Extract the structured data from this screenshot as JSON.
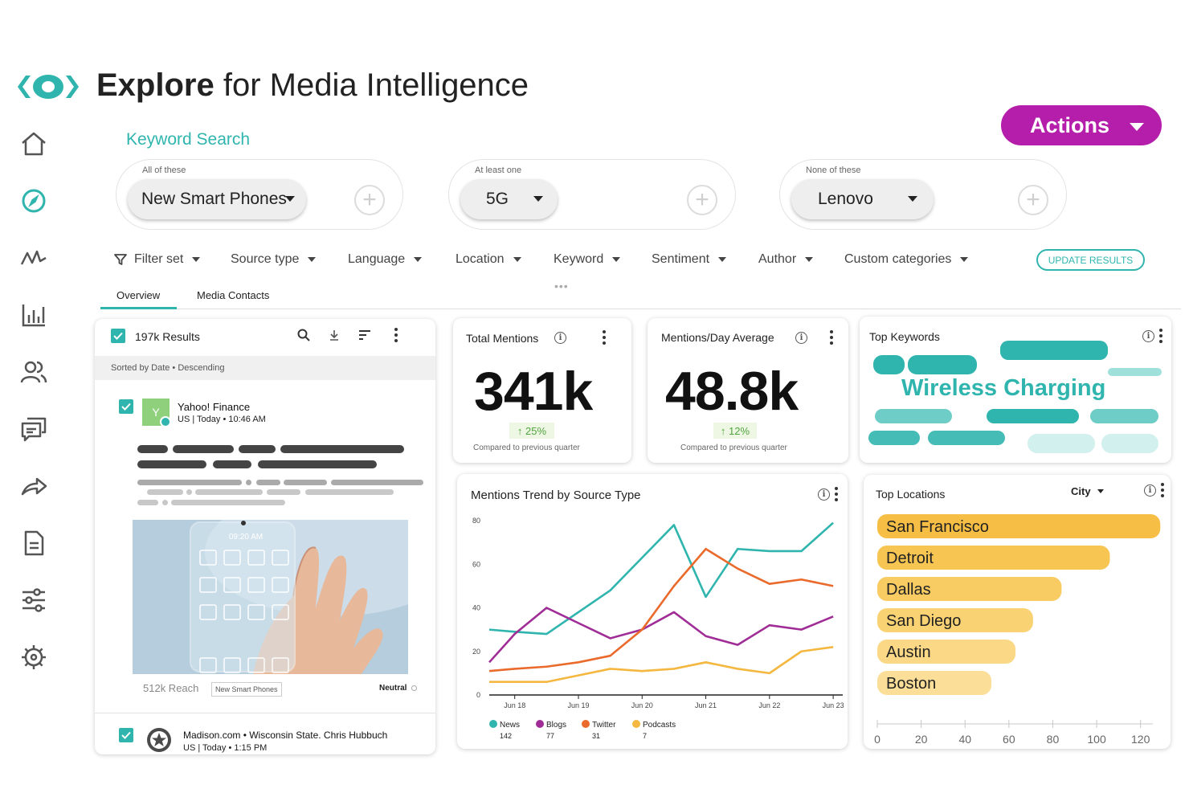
{
  "header": {
    "title_bold": "Explore",
    "title_rest": " for Media Intelligence",
    "actions_label": "Actions"
  },
  "sidebar": {
    "items": [
      {
        "icon": "home-icon"
      },
      {
        "icon": "compass-icon",
        "active": true
      },
      {
        "icon": "trend-icon"
      },
      {
        "icon": "bar-chart-icon"
      },
      {
        "icon": "people-icon"
      },
      {
        "icon": "chat-icon"
      },
      {
        "icon": "share-icon"
      },
      {
        "icon": "document-icon"
      },
      {
        "icon": "sliders-icon"
      },
      {
        "icon": "settings-icon"
      }
    ]
  },
  "keyword_search": {
    "title": "Keyword Search",
    "groups": [
      {
        "label": "All of these",
        "value": "New Smart Phones"
      },
      {
        "label": "At least one",
        "value": "5G"
      },
      {
        "label": "None of these",
        "value": "Lenovo"
      }
    ]
  },
  "filters": {
    "items": [
      "Filter set",
      "Source type",
      "Language",
      "Location",
      "Keyword",
      "Sentiment",
      "Author",
      "Custom categories"
    ],
    "update_label": "UPDATE RESULTS"
  },
  "tabs": [
    "Overview",
    "Media Contacts"
  ],
  "results": {
    "count": "197k Results",
    "sorted": "Sorted by Date • Descending",
    "item1": {
      "avatar": "Y",
      "source": "Yahoo! Finance",
      "meta": "US  |  Today • 10:46 AM",
      "reach": "512k Reach",
      "tag": "New Smart Phones",
      "sentiment": "Neutral",
      "phone_time": "09:20 AM"
    },
    "item2": {
      "source": "Madison.com • Wisconsin State. Chris Hubbuch",
      "meta": "US | Today • 1:15 PM"
    }
  },
  "kpis": [
    {
      "title": "Total Mentions",
      "value": "341k",
      "delta": "↑ 25%",
      "note": "Compared to previous quarter"
    },
    {
      "title": "Mentions/Day Average",
      "value": "48.8k",
      "delta": "↑ 12%",
      "note": "Compared to previous quarter"
    }
  ],
  "top_keywords": {
    "title": "Top Keywords",
    "highlight": "Wireless Charging",
    "accent": "#2fb5ae"
  },
  "trend": {
    "title": "Mentions Trend by Source Type",
    "legend_counts": {
      "News": "142",
      "Blogs": "77",
      "Twitter": "31",
      "Podcasts": "7"
    }
  },
  "locations": {
    "title": "Top Locations",
    "selector": "City"
  },
  "chart_data": [
    {
      "type": "line",
      "title": "Mentions Trend by Source Type",
      "x_ticks": [
        "Jun 18",
        "Jun 19",
        "Jun 20",
        "Jun 21",
        "Jun 22",
        "Jun 23"
      ],
      "x": [
        17.6,
        18.0,
        18.5,
        19.0,
        19.5,
        20.0,
        20.5,
        21.0,
        21.5,
        22.0,
        22.5,
        23.0
      ],
      "ylim": [
        0,
        80
      ],
      "y_ticks": [
        0,
        20,
        40,
        60,
        80
      ],
      "series": [
        {
          "name": "News",
          "color": "#2fb5ae",
          "values": [
            30,
            29,
            28,
            38,
            48,
            63,
            78,
            45,
            67,
            66,
            66,
            79
          ]
        },
        {
          "name": "Blogs",
          "color": "#a02d96",
          "values": [
            15,
            28,
            40,
            33,
            26,
            30,
            38,
            27,
            23,
            32,
            30,
            36
          ]
        },
        {
          "name": "Twitter",
          "color": "#ea6a2c",
          "values": [
            11,
            12,
            13,
            15,
            18,
            30,
            50,
            67,
            58,
            51,
            53,
            50
          ]
        },
        {
          "name": "Podcasts",
          "color": "#f4b740",
          "values": [
            6,
            6,
            6,
            9,
            12,
            11,
            12,
            15,
            12,
            10,
            20,
            22
          ]
        }
      ]
    },
    {
      "type": "bar",
      "title": "Top Locations",
      "orientation": "horizontal",
      "categories": [
        "San Francisco",
        "Detroit",
        "Dallas",
        "San Diego",
        "Austin",
        "Boston"
      ],
      "values": [
        129,
        106,
        84,
        71,
        63,
        52
      ],
      "xlim": [
        0,
        130
      ],
      "x_ticks": [
        0,
        20,
        40,
        60,
        80,
        100,
        120
      ],
      "colors": [
        "#f6be45",
        "#f7c552",
        "#f8cc62",
        "#f9d273",
        "#fad885",
        "#fbde98"
      ]
    }
  ]
}
